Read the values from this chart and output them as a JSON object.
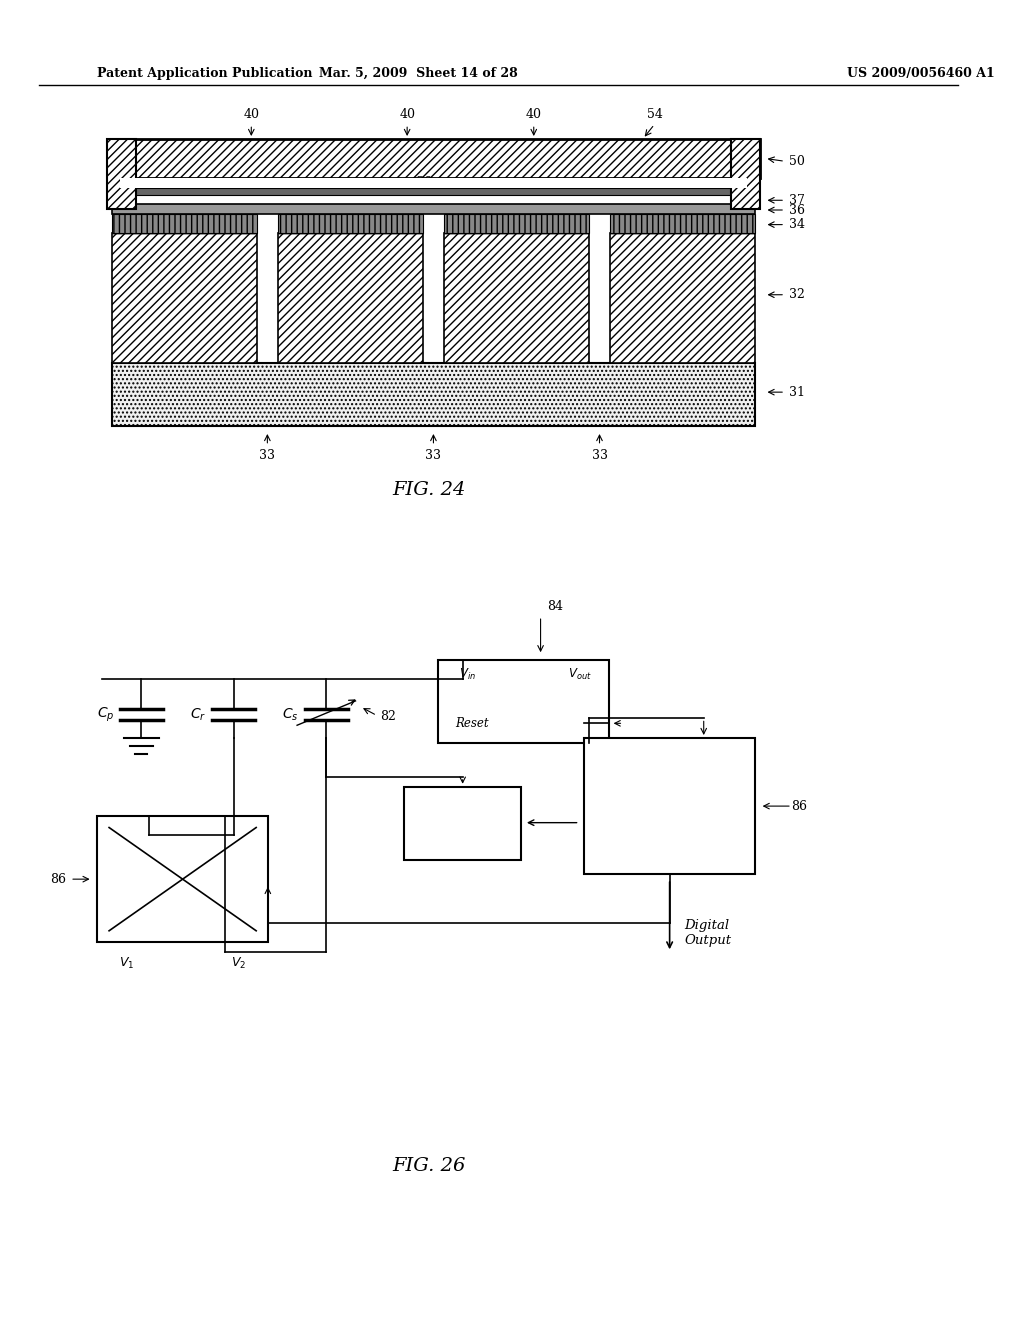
{
  "header_left": "Patent Application Publication",
  "header_mid": "Mar. 5, 2009  Sheet 14 of 28",
  "header_right": "US 2009/0056460 A1",
  "fig24_title": "FIG. 24",
  "fig26_title": "FIG. 26",
  "bg_color": "#ffffff",
  "line_color": "#000000"
}
